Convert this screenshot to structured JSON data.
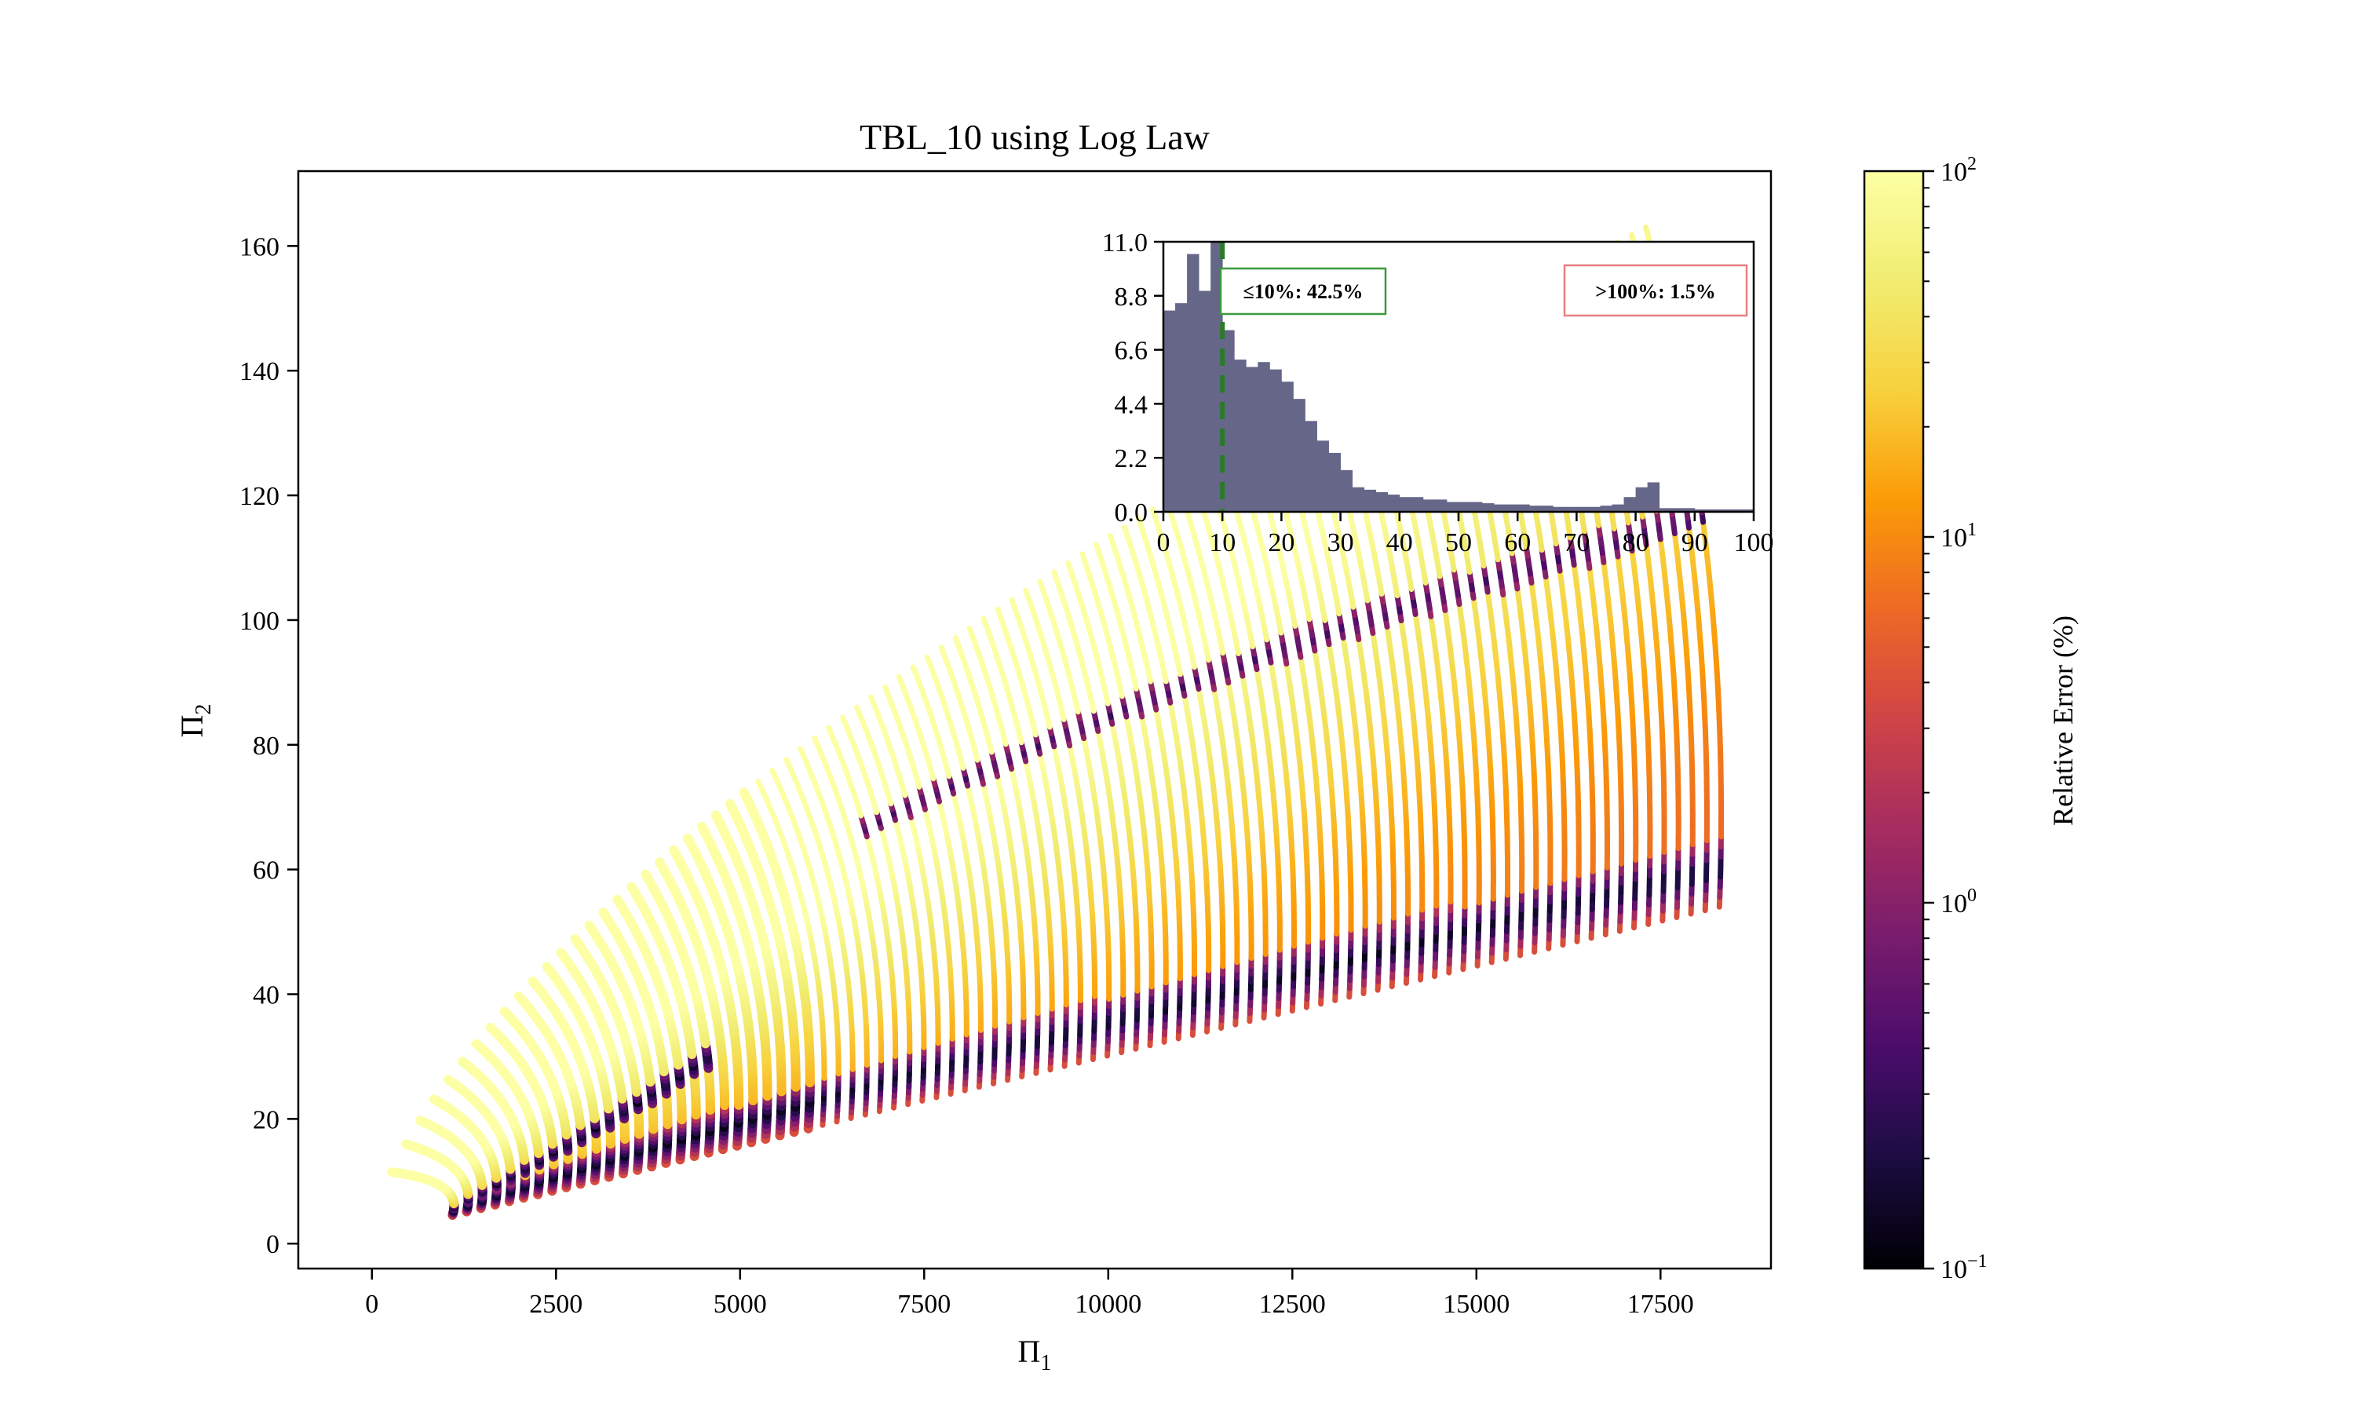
{
  "chart_data": [
    {
      "type": "scatter",
      "title": "TBL_10 using Log Law",
      "xlabel": "Π",
      "xlabel_sub": "1",
      "ylabel": "Π",
      "ylabel_sub": "2",
      "xlim": [
        -1000,
        19000
      ],
      "ylim": [
        -4,
        172
      ],
      "xticks": [
        0,
        2500,
        5000,
        7500,
        10000,
        12500,
        15000,
        17500
      ],
      "xtick_labels": [
        "0",
        "2500",
        "5000",
        "7500",
        "10000",
        "12500",
        "15000",
        "17500"
      ],
      "yticks": [
        0,
        20,
        40,
        60,
        80,
        100,
        120,
        140,
        160
      ],
      "ytick_labels": [
        "0",
        "20",
        "40",
        "60",
        "80",
        "100",
        "120",
        "140",
        "160"
      ],
      "grid": false,
      "colormap": "inferno",
      "color_scale": "log",
      "curves": {
        "count": 90,
        "origin": [
          900,
          4
        ],
        "lower_end": [
          18300,
          54
        ],
        "upper_end": [
          17300,
          163
        ],
        "description": "family of arcs; each arc runs from the lower boundary line up to the upper boundary curve"
      }
    },
    {
      "type": "bar",
      "role": "inset-histogram",
      "xlim": [
        0,
        100
      ],
      "ylim": [
        0,
        11
      ],
      "xticks": [
        0,
        10,
        20,
        30,
        40,
        50,
        60,
        70,
        80,
        90,
        100
      ],
      "xtick_labels": [
        "0",
        "10",
        "20",
        "30",
        "40",
        "50",
        "60",
        "70",
        "80",
        "90",
        "100"
      ],
      "yticks": [
        0,
        2.2,
        4.4,
        6.6,
        8.8,
        11.0
      ],
      "ytick_labels": [
        "0.0",
        "2.2",
        "4.4",
        "6.6",
        "8.8",
        "11.0"
      ],
      "bin_width": 2,
      "values": [
        8.2,
        8.5,
        10.5,
        9.0,
        11.0,
        7.4,
        6.2,
        5.9,
        6.1,
        5.8,
        5.3,
        4.6,
        3.7,
        2.9,
        2.4,
        1.7,
        1.0,
        0.9,
        0.8,
        0.7,
        0.6,
        0.6,
        0.5,
        0.5,
        0.4,
        0.4,
        0.4,
        0.35,
        0.3,
        0.3,
        0.3,
        0.25,
        0.25,
        0.2,
        0.2,
        0.2,
        0.2,
        0.25,
        0.3,
        0.6,
        1.0,
        1.2,
        0.15,
        0.15,
        0.15,
        0.1,
        0.1,
        0.1,
        0.1,
        0.1
      ],
      "bar_color": "#666688",
      "threshold_line": 10,
      "threshold_color": "#2a7a2a",
      "annotation_left": "≤10%: 42.5%",
      "annotation_left_color": "#3a9a3a",
      "annotation_right": ">100%: 1.5%",
      "annotation_right_color": "#e88080"
    },
    {
      "type": "colorbar",
      "label": "Relative Error (%)",
      "scale": "log",
      "range": [
        0.1,
        100
      ],
      "tick_labels": [
        {
          "base": "10",
          "exp": "2"
        },
        {
          "base": "10",
          "exp": "1"
        },
        {
          "base": "10",
          "exp": "0"
        },
        {
          "base": "10",
          "exp": "−1"
        }
      ]
    }
  ]
}
